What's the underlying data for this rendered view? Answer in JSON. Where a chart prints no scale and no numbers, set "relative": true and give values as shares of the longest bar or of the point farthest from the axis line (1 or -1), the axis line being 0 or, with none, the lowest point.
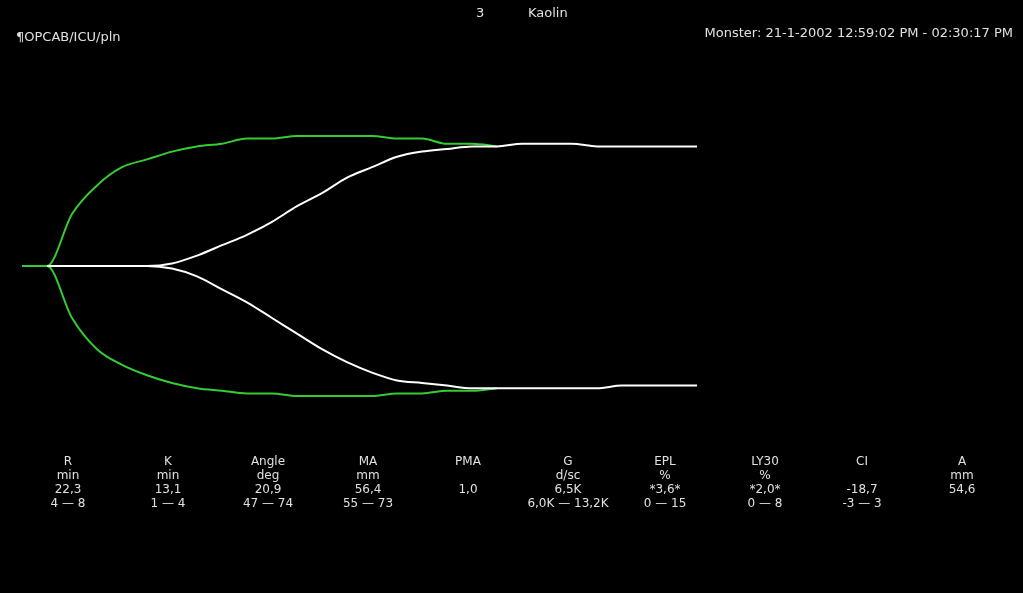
{
  "chart_data": {
    "type": "line",
    "relative": true,
    "title": "Kaolin",
    "subtitle": "Monster: 21-1-2002 12:59:02 PM - 02:30:17 PM",
    "legend": false,
    "marker": "none",
    "line_style": "solid",
    "annotations": [
      "¶OPCAB/ICU/pln",
      "3",
      "R\nmin\n22,3\n4 — 8",
      "K\nmin\n13,1\n1 — 4",
      "Angle\ndeg\n20,9\n47 — 74",
      "MA\nmm\n56,4\n55 — 73",
      "PMA\n\n1,0\n",
      "G\nd/sc\n6,5K\n6,0K — 13,2K",
      "EPL\n%\n*3,6*\n0 — 15",
      "LY30\n%\n*2,0*\n0 — 8",
      "CI\n\n-18,7\n-3 — 3",
      "A\nmm\n54,6\n"
    ],
    "categories": [
      null,
      null,
      null,
      null,
      null,
      null,
      null,
      null,
      null,
      null,
      null,
      null,
      null,
      null,
      null,
      null,
      null,
      null,
      null,
      null,
      null,
      null,
      null,
      null,
      null,
      null,
      null,
      null,
      null,
      null,
      null,
      null,
      null,
      null,
      null,
      null,
      null,
      null,
      null,
      null
    ],
    "series": [
      {
        "color": "#33cc33",
        "values": [
          0.5,
          0.5,
          0.7,
          0.81,
          0.88,
          0.91,
          0.94,
          0.96,
          0.97,
          0.99,
          0.99,
          1,
          1,
          1,
          1,
          0.99,
          0.99,
          0.97,
          0.97,
          0.96,
          null,
          null,
          null,
          null,
          null,
          null,
          null,
          null,
          null,
          null,
          null,
          null,
          null,
          null,
          null,
          null,
          null,
          null,
          null,
          null
        ]
      },
      {
        "color": "#33cc33",
        "values": [
          0.5,
          0.5,
          0.3,
          0.18,
          0.12,
          0.08,
          0.05,
          0.03,
          0.02,
          0.01,
          0.01,
          0,
          0,
          0,
          0,
          0.01,
          0.01,
          0.02,
          0.02,
          0.03,
          null,
          null,
          null,
          null,
          null,
          null,
          null,
          null,
          null,
          null,
          null,
          null,
          null,
          null,
          null,
          null,
          null,
          null,
          null,
          null
        ]
      },
      {
        "color": "#ffffff",
        "values": [
          null,
          0.5,
          0.5,
          0.5,
          0.5,
          0.5,
          0.51,
          0.54,
          0.58,
          0.62,
          0.67,
          0.73,
          0.78,
          0.84,
          0.88,
          0.92,
          0.94,
          0.95,
          0.96,
          0.96,
          0.97,
          0.97,
          0.97,
          0.96,
          0.96,
          0.96,
          0.96,
          0.96,
          null,
          null,
          null,
          null,
          null,
          null,
          null,
          null,
          null,
          null,
          null,
          null
        ]
      },
      {
        "color": "#ffffff",
        "values": [
          null,
          0.5,
          0.5,
          0.5,
          0.5,
          0.5,
          0.49,
          0.46,
          0.41,
          0.36,
          0.3,
          0.24,
          0.18,
          0.13,
          0.09,
          0.06,
          0.05,
          0.04,
          0.03,
          0.03,
          0.03,
          0.03,
          0.03,
          0.03,
          0.04,
          0.04,
          0.04,
          0.04,
          null,
          null,
          null,
          null,
          null,
          null,
          null,
          null,
          null,
          null,
          null,
          null
        ]
      }
    ]
  }
}
